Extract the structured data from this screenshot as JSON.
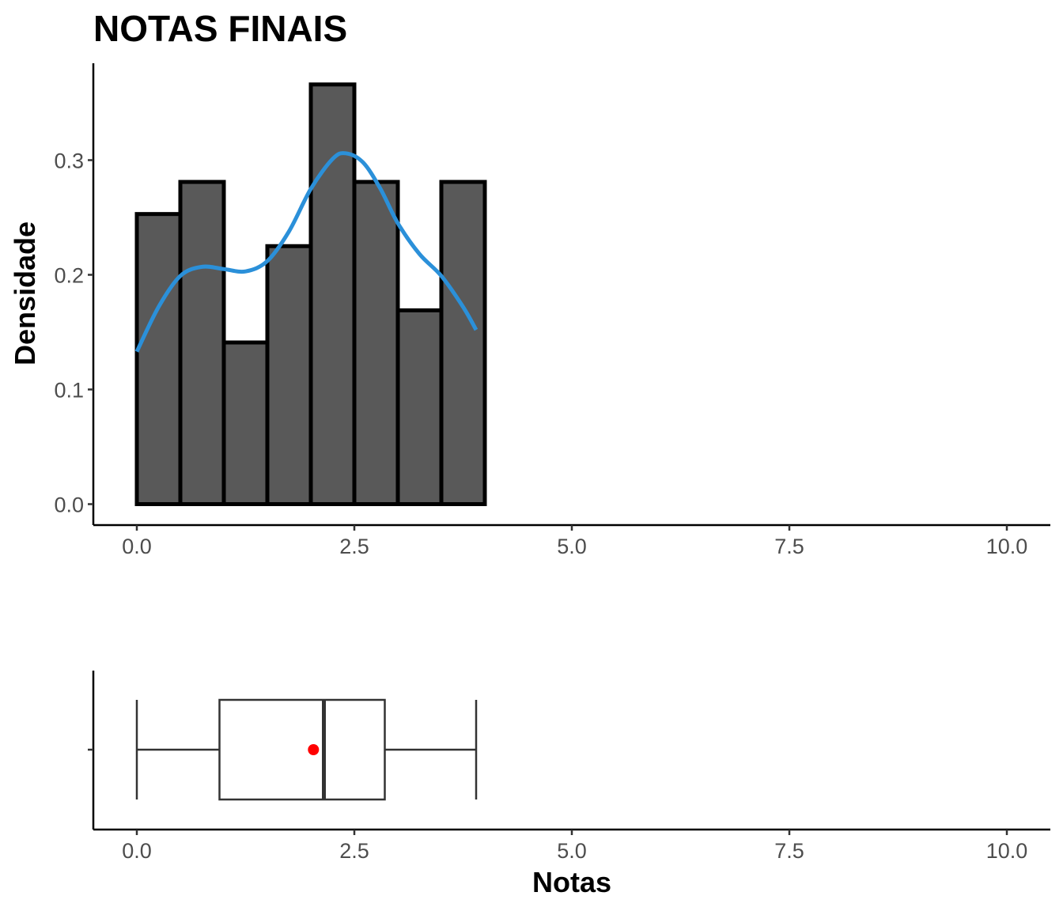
{
  "chart_data": [
    {
      "type": "histogram",
      "title": "NOTAS FINAIS",
      "xlabel": "",
      "ylabel": "Densidade",
      "xlim": [
        0,
        10
      ],
      "ylim": [
        0,
        0.37
      ],
      "x_ticks": [
        "0.0",
        "2.5",
        "5.0",
        "7.5",
        "10.0"
      ],
      "y_ticks": [
        "0.0",
        "0.1",
        "0.2",
        "0.3"
      ],
      "bin_width": 0.5,
      "bins": [
        {
          "x0": 0.0,
          "x1": 0.5,
          "density": 0.253
        },
        {
          "x0": 0.5,
          "x1": 1.0,
          "density": 0.281
        },
        {
          "x0": 1.0,
          "x1": 1.5,
          "density": 0.141
        },
        {
          "x0": 1.5,
          "x1": 2.0,
          "density": 0.225
        },
        {
          "x0": 2.0,
          "x1": 2.5,
          "density": 0.366
        },
        {
          "x0": 2.5,
          "x1": 3.0,
          "density": 0.281
        },
        {
          "x0": 3.0,
          "x1": 3.5,
          "density": 0.169
        },
        {
          "x0": 3.5,
          "x1": 4.0,
          "density": 0.281
        },
        {
          "x0": 4.0,
          "x1": 4.5,
          "density": 0
        },
        {
          "x0": 4.5,
          "x1": 5.0,
          "density": 0
        },
        {
          "x0": 5.0,
          "x1": 5.5,
          "density": 0
        },
        {
          "x0": 5.5,
          "x1": 6.0,
          "density": 0
        },
        {
          "x0": 6.0,
          "x1": 6.5,
          "density": 0
        },
        {
          "x0": 6.5,
          "x1": 7.0,
          "density": 0
        },
        {
          "x0": 7.0,
          "x1": 7.5,
          "density": 0
        },
        {
          "x0": 7.5,
          "x1": 8.0,
          "density": 0
        },
        {
          "x0": 8.0,
          "x1": 8.5,
          "density": 0
        },
        {
          "x0": 8.5,
          "x1": 9.0,
          "density": 0
        },
        {
          "x0": 9.0,
          "x1": 9.5,
          "density": 0
        },
        {
          "x0": 9.5,
          "x1": 10.0,
          "density": 0
        }
      ],
      "density_curve": {
        "color": "#2b90d9",
        "x": [
          0.0,
          0.25,
          0.5,
          0.75,
          1.0,
          1.25,
          1.5,
          1.75,
          2.0,
          2.25,
          2.4,
          2.6,
          2.8,
          3.0,
          3.25,
          3.5,
          3.75,
          3.9
        ],
        "y": [
          0.133,
          0.172,
          0.199,
          0.207,
          0.205,
          0.203,
          0.212,
          0.238,
          0.275,
          0.301,
          0.306,
          0.298,
          0.275,
          0.245,
          0.218,
          0.199,
          0.172,
          0.152
        ]
      },
      "bar_fill": "#595959",
      "bar_stroke": "#000000"
    },
    {
      "type": "boxplot",
      "xlabel": "Notas",
      "xlim": [
        0,
        10
      ],
      "x_ticks": [
        "0.0",
        "2.5",
        "5.0",
        "7.5",
        "10.0"
      ],
      "box": {
        "min": 0.0,
        "q1": 0.95,
        "median": 2.15,
        "q3": 2.85,
        "max": 3.9,
        "mean": 2.03
      },
      "mean_color": "#ff0000",
      "box_stroke": "#333333"
    }
  ]
}
